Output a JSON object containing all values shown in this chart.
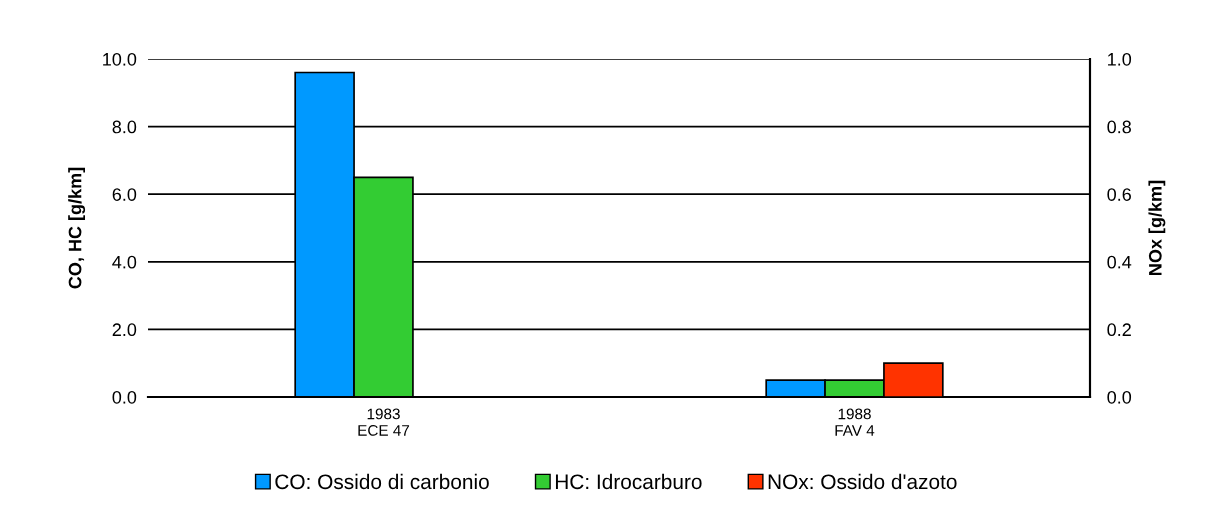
{
  "chart_data": {
    "type": "bar",
    "categories": [
      "1983\nECE 47",
      "1988\nFAV 4"
    ],
    "series": [
      {
        "name": "CO: Ossido di carbonio",
        "color": "#0099ff",
        "values": [
          9.6,
          0.5
        ]
      },
      {
        "name": "HC: Idrocarburo",
        "color": "#33cc33",
        "values": [
          6.5,
          0.5
        ]
      },
      {
        "name": "NOx: Ossido d'azoto",
        "color": "#ff3300",
        "values": [
          null,
          0.1
        ],
        "axis": "y2"
      }
    ],
    "ylabel": "CO, HC [g/km]",
    "y2label": "NOx [g/km]",
    "ylim": [
      0,
      10
    ],
    "yticks": [
      {
        "value": 0,
        "label": "0.0"
      },
      {
        "value": 2,
        "label": "2.0"
      },
      {
        "value": 4,
        "label": "4.0"
      },
      {
        "value": 6,
        "label": "6.0"
      },
      {
        "value": 8,
        "label": "8.0"
      },
      {
        "value": 10,
        "label": "10.0"
      }
    ],
    "y2lim": [
      0,
      1
    ],
    "y2ticks": [
      {
        "value": 0,
        "label": "0.0"
      },
      {
        "value": 0.2,
        "label": "0.2"
      },
      {
        "value": 0.4,
        "label": "0.4"
      },
      {
        "value": 0.6,
        "label": "0.6"
      },
      {
        "value": 0.8,
        "label": "0.8"
      },
      {
        "value": 1,
        "label": "1.0"
      }
    ],
    "grid": "y",
    "legend": "bottom"
  }
}
